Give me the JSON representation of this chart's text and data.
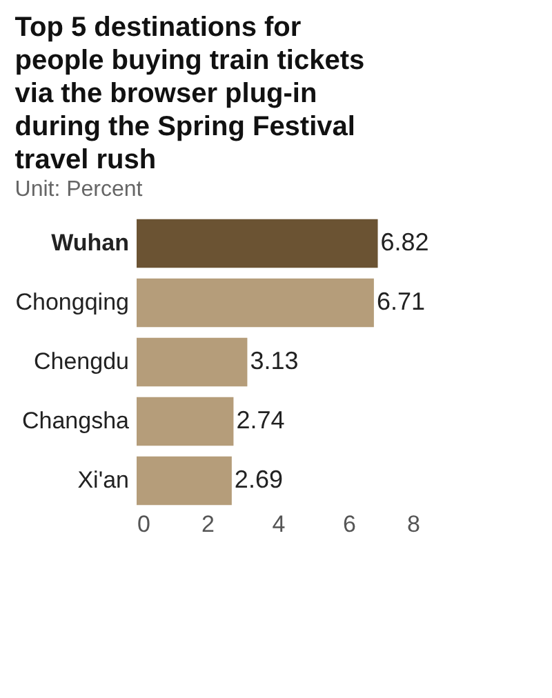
{
  "chart_data": {
    "type": "bar",
    "orientation": "horizontal",
    "title": "Top 5 destinations for people buying train tickets via the browser plug-in during the Spring Festival travel rush",
    "subtitle": "Unit: Percent",
    "categories": [
      "Wuhan",
      "Chongqing",
      "Chengdu",
      "Changsha",
      "Xi'an"
    ],
    "values": [
      6.82,
      6.71,
      3.13,
      2.74,
      2.69
    ],
    "colors": [
      "#6b5333",
      "#b59d7a",
      "#b59d7a",
      "#b59d7a",
      "#b59d7a"
    ],
    "xlim": [
      0,
      8
    ],
    "xticks": [
      0,
      2,
      4,
      6,
      8
    ],
    "data_labels": true,
    "grid": false
  }
}
